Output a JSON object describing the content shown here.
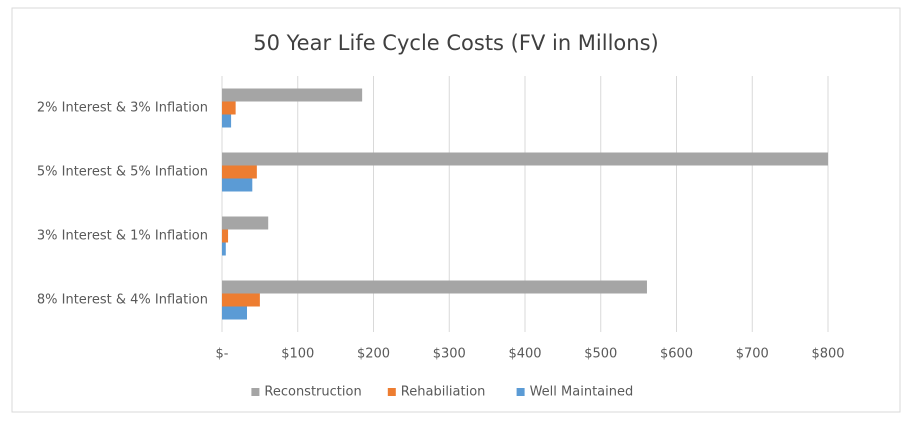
{
  "chart_data": {
    "type": "hbar",
    "title": "50 Year Life Cycle Costs (FV in Millons)",
    "categories": [
      "2% Interest & 3% Inflation",
      "5% Interest & 5% Inflation",
      "3% Interest & 1% Inflation",
      "8% Interest & 4% Inflation"
    ],
    "series": [
      {
        "name": "Reconstruction",
        "color": "#a5a5a5",
        "values": [
          185,
          800,
          61,
          561
        ]
      },
      {
        "name": "Rehabiliation",
        "color": "#ed7d31",
        "values": [
          18,
          46,
          8,
          50
        ]
      },
      {
        "name": "Well Maintained",
        "color": "#5b9bd5",
        "values": [
          12,
          40,
          5,
          33
        ]
      }
    ],
    "xlim": [
      0,
      800
    ],
    "xticks": [
      {
        "value": 0,
        "label": "$-"
      },
      {
        "value": 100,
        "label": "$100"
      },
      {
        "value": 200,
        "label": "$200"
      },
      {
        "value": 300,
        "label": "$300"
      },
      {
        "value": 400,
        "label": "$400"
      },
      {
        "value": 500,
        "label": "$500"
      },
      {
        "value": 600,
        "label": "$600"
      },
      {
        "value": 700,
        "label": "$700"
      },
      {
        "value": 800,
        "label": "$800"
      }
    ],
    "grid": true,
    "legend": "bottom"
  }
}
